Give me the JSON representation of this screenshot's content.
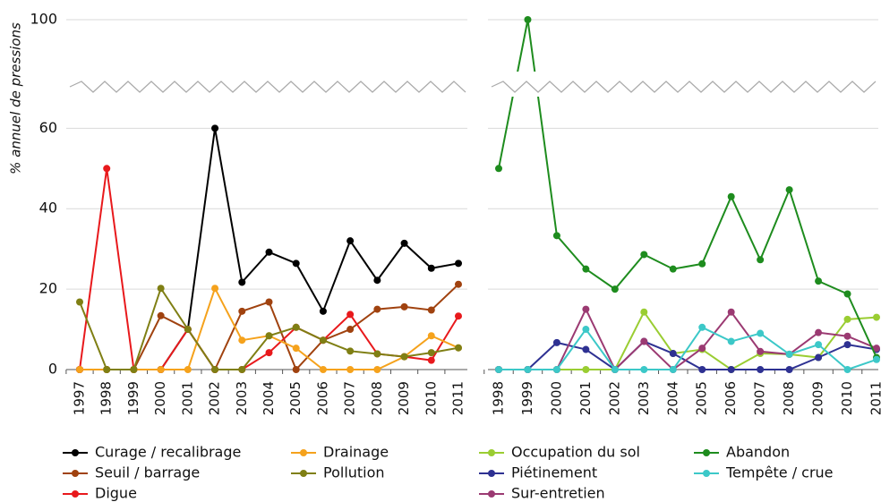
{
  "chart_data": [
    {
      "type": "line",
      "y_label": "% annuel de pressions",
      "categories": [
        "1997",
        "1998",
        "1999",
        "2000",
        "2001",
        "2002",
        "2003",
        "2004",
        "2005",
        "2006",
        "2007",
        "2008",
        "2009",
        "2010",
        "2011"
      ],
      "ylim": [
        0,
        100
      ],
      "yticks": [
        0,
        20,
        40,
        60,
        100
      ],
      "axis_break": [
        70,
        83
      ],
      "grid": true,
      "series": [
        {
          "name": "Curage / recalibrage",
          "color": "#000000",
          "values": [
            0,
            0,
            0,
            0,
            10,
            60,
            21.7,
            29.2,
            26.4,
            14.5,
            32,
            22.2,
            31.4,
            25.2,
            26.4
          ]
        },
        {
          "name": "Seuil / barrage",
          "color": "#a0420f",
          "values": [
            0,
            0,
            0,
            13.4,
            10,
            0,
            14.5,
            16.8,
            0,
            7.3,
            10,
            15,
            15.6,
            14.8,
            21.2
          ]
        },
        {
          "name": "Digue",
          "color": "#e8191c",
          "values": [
            0,
            50,
            0,
            0,
            10,
            0,
            0,
            4.2,
            10.5,
            7.3,
            13.7,
            3.9,
            3.2,
            2.3,
            13.3
          ]
        },
        {
          "name": "Drainage",
          "color": "#f5a21c",
          "values": [
            0,
            0,
            0,
            0,
            0,
            20.2,
            7.3,
            8.4,
            5.3,
            0,
            0,
            0,
            3.2,
            8.4,
            5.4
          ]
        },
        {
          "name": "Pollution",
          "color": "#7f7f14",
          "values": [
            16.8,
            0,
            0,
            20.2,
            10,
            0,
            0,
            8.4,
            10.5,
            7.3,
            4.6,
            3.9,
            3.2,
            4.2,
            5.4
          ]
        }
      ]
    },
    {
      "type": "line",
      "categories": [
        "1998",
        "1999",
        "2000",
        "2001",
        "2002",
        "2003",
        "2004",
        "2005",
        "2006",
        "2007",
        "2008",
        "2009",
        "2010",
        "2011"
      ],
      "ylim": [
        0,
        100
      ],
      "yticks": [
        0,
        20,
        40,
        60,
        100
      ],
      "axis_break": [
        70,
        83
      ],
      "grid": true,
      "series": [
        {
          "name": "Occupation du sol",
          "color": "#9acd32",
          "values": [
            0,
            0,
            0,
            0,
            0,
            14.3,
            4,
            5,
            0,
            4,
            3.8,
            3,
            12.5,
            13
          ]
        },
        {
          "name": "Piétinement",
          "color": "#2e3192",
          "values": [
            0,
            0,
            6.7,
            5,
            0,
            7,
            4,
            0,
            0,
            0,
            0,
            3,
            6.2,
            5
          ]
        },
        {
          "name": "Sur-entretien",
          "color": "#9b3a72",
          "values": [
            0,
            0,
            0,
            15,
            0,
            7,
            0,
            5.3,
            14.3,
            4.5,
            3.8,
            9.2,
            8.3,
            5.3
          ]
        },
        {
          "name": "Abandon",
          "color": "#1e8c1e",
          "values": [
            50,
            100,
            33.3,
            25,
            20,
            28.6,
            25,
            26.3,
            43,
            27.3,
            44.7,
            22,
            18.8,
            3
          ]
        },
        {
          "name": "Tempête / crue",
          "color": "#3cc8c8",
          "values": [
            0,
            0,
            0,
            10,
            0,
            0,
            0,
            10.5,
            7,
            9,
            3.8,
            6.2,
            0,
            2.5
          ]
        }
      ]
    }
  ]
}
